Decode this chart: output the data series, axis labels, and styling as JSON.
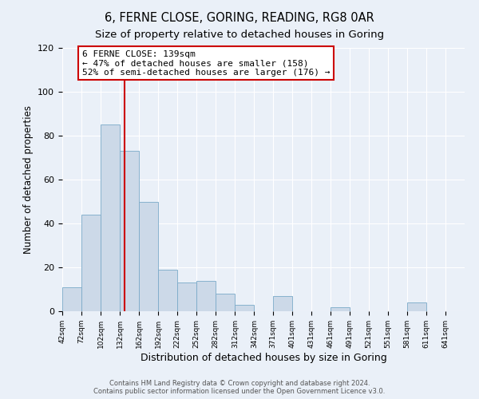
{
  "title": "6, FERNE CLOSE, GORING, READING, RG8 0AR",
  "subtitle": "Size of property relative to detached houses in Goring",
  "xlabel": "Distribution of detached houses by size in Goring",
  "ylabel": "Number of detached properties",
  "bar_color": "#ccd9e8",
  "bar_edge_color": "#7aaac8",
  "background_color": "#eaf0f8",
  "vline_x": 139,
  "vline_color": "#cc0000",
  "annotation_text": "6 FERNE CLOSE: 139sqm\n← 47% of detached houses are smaller (158)\n52% of semi-detached houses are larger (176) →",
  "annotation_box_color": "#ffffff",
  "annotation_box_edge_color": "#cc0000",
  "bins_left": [
    42,
    72,
    102,
    132,
    162,
    192,
    222,
    252,
    282,
    312,
    342,
    371,
    401,
    431,
    461,
    491,
    521,
    551,
    581,
    611
  ],
  "bin_heights": [
    11,
    44,
    85,
    73,
    50,
    19,
    13,
    14,
    8,
    3,
    0,
    7,
    0,
    0,
    2,
    0,
    0,
    0,
    4,
    0
  ],
  "xlim_left": 42,
  "xlim_right": 671,
  "ylim_top": 120,
  "yticks": [
    0,
    20,
    40,
    60,
    80,
    100,
    120
  ],
  "tick_labels": [
    "42sqm",
    "72sqm",
    "102sqm",
    "132sqm",
    "162sqm",
    "192sqm",
    "222sqm",
    "252sqm",
    "282sqm",
    "312sqm",
    "342sqm",
    "371sqm",
    "401sqm",
    "431sqm",
    "461sqm",
    "491sqm",
    "521sqm",
    "551sqm",
    "581sqm",
    "611sqm",
    "641sqm"
  ],
  "tick_positions": [
    42,
    72,
    102,
    132,
    162,
    192,
    222,
    252,
    282,
    312,
    342,
    371,
    401,
    431,
    461,
    491,
    521,
    551,
    581,
    611,
    641
  ],
  "footer_text": "Contains HM Land Registry data © Crown copyright and database right 2024.\nContains public sector information licensed under the Open Government Licence v3.0.",
  "title_fontsize": 10.5,
  "subtitle_fontsize": 9.5,
  "xlabel_fontsize": 9,
  "ylabel_fontsize": 8.5,
  "tick_fontsize": 6.5,
  "ytick_fontsize": 8,
  "footer_fontsize": 6,
  "annot_fontsize": 8
}
